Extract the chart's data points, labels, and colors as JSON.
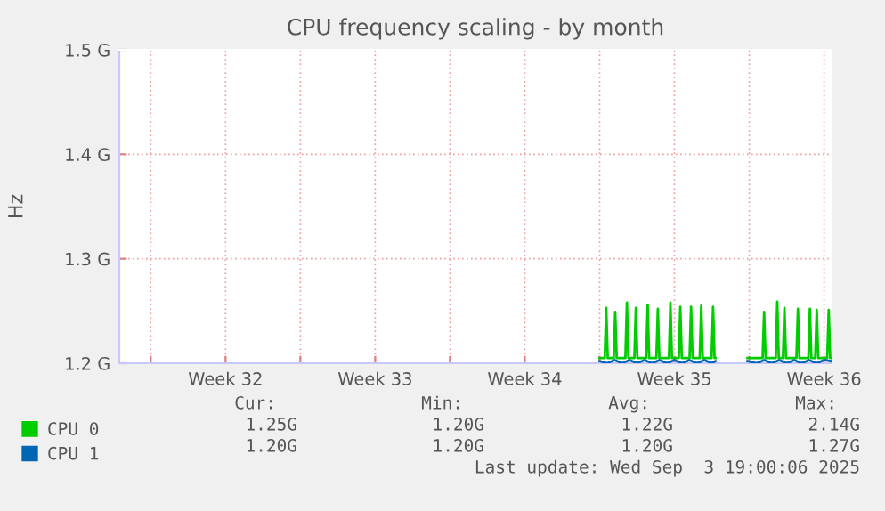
{
  "chart_data": {
    "type": "line",
    "title": "CPU frequency scaling - by month",
    "ylabel": "Hz",
    "xlim": [
      "2025-08-02T12:43",
      "2025-09-04T20:24"
    ],
    "xticks": [
      {
        "value": "2025-08-04",
        "label": null
      },
      {
        "value": "2025-08-07T12:00",
        "label": "Week 32"
      },
      {
        "value": "2025-08-11",
        "label": null
      },
      {
        "value": "2025-08-14T12:00",
        "label": "Week 33"
      },
      {
        "value": "2025-08-18",
        "label": null
      },
      {
        "value": "2025-08-21T12:00",
        "label": "Week 34"
      },
      {
        "value": "2025-08-25",
        "label": null
      },
      {
        "value": "2025-08-28T12:00",
        "label": "Week 35"
      },
      {
        "value": "2025-09-01",
        "label": null
      },
      {
        "value": "2025-09-04T12:00",
        "label": "Week 36"
      }
    ],
    "ylim": [
      1.2,
      1.5
    ],
    "yticks": [
      {
        "value": 1.2,
        "label": "1.2 G"
      },
      {
        "value": 1.3,
        "label": "1.3 G"
      },
      {
        "value": 1.4,
        "label": "1.4 G"
      },
      {
        "value": 1.5,
        "label": "1.5 G"
      }
    ],
    "grid": true,
    "legend": "bottom left",
    "series": [
      {
        "name": "CPU 0",
        "color": "#00cc00",
        "x": [
          "2025-08-25T00:00",
          "2025-08-25T05:43",
          "2025-08-25T07:23",
          "2025-08-25T09:04",
          "2025-08-25T15:47",
          "2025-08-25T17:28",
          "2025-08-25T19:09",
          "2025-08-26T04:54",
          "2025-08-26T06:35",
          "2025-08-26T08:15",
          "2025-08-26T14:59",
          "2025-08-26T16:39",
          "2025-08-26T18:20",
          "2025-08-27T04:15",
          "2025-08-27T05:56",
          "2025-08-27T07:36",
          "2025-08-27T15:40",
          "2025-08-27T17:21",
          "2025-08-27T19:02",
          "2025-08-28T05:47",
          "2025-08-28T07:28",
          "2025-08-28T09:09",
          "2025-08-28T16:52",
          "2025-08-28T18:33",
          "2025-08-28T20:14",
          "2025-08-29T04:58",
          "2025-08-29T06:39",
          "2025-08-29T08:20",
          "2025-08-29T16:23",
          "2025-08-29T18:04",
          "2025-08-29T19:45",
          "2025-08-30T05:40",
          "2025-08-30T07:21",
          "2025-08-30T09:01",
          "2025-08-30T10:02",
          "2025-08-31T03:50",
          "2025-08-31T21:59",
          "2025-09-01T14:57",
          "2025-09-01T16:38",
          "2025-09-01T18:19",
          "2025-09-02T05:44",
          "2025-09-02T07:25",
          "2025-09-02T09:06",
          "2025-09-02T13:48",
          "2025-09-02T15:29",
          "2025-09-02T17:10",
          "2025-09-03T04:55",
          "2025-09-03T06:36",
          "2025-09-03T08:17",
          "2025-09-03T18:22",
          "2025-09-03T20:02",
          "2025-09-03T21:43",
          "2025-09-04T02:04",
          "2025-09-04T03:44",
          "2025-09-04T05:25",
          "2025-09-04T15:30",
          "2025-09-04T17:11",
          "2025-09-04T18:52",
          "2025-09-04T19:52"
        ],
        "values": [
          1.205,
          1.205,
          1.253,
          1.205,
          1.205,
          1.249,
          1.205,
          1.205,
          1.258,
          1.205,
          1.205,
          1.253,
          1.205,
          1.205,
          1.256,
          1.205,
          1.205,
          1.252,
          1.205,
          1.205,
          1.258,
          1.205,
          1.205,
          1.254,
          1.205,
          1.205,
          1.254,
          1.205,
          1.205,
          1.255,
          1.205,
          1.205,
          1.254,
          1.205,
          1.205,
          null,
          1.205,
          1.205,
          1.249,
          1.205,
          1.205,
          1.259,
          1.205,
          1.205,
          1.253,
          1.205,
          1.205,
          1.252,
          1.205,
          1.205,
          1.252,
          1.205,
          1.205,
          1.251,
          1.205,
          1.205,
          1.251,
          1.205,
          1.205
        ]
      },
      {
        "name": "CPU 1",
        "color": "#0066b3",
        "x": [
          "2025-08-25T00:00",
          "2025-08-25T08:24",
          "2025-08-25T16:48",
          "2025-08-26T01:12",
          "2025-08-26T09:36",
          "2025-08-26T18:00",
          "2025-08-27T02:24",
          "2025-08-27T10:48",
          "2025-08-27T19:12",
          "2025-08-28T03:36",
          "2025-08-28T12:00",
          "2025-08-28T20:24",
          "2025-08-29T04:48",
          "2025-08-29T13:12",
          "2025-08-29T21:36",
          "2025-08-30T06:00",
          "2025-08-30T10:02",
          "2025-08-31T03:50",
          "2025-08-31T21:59",
          "2025-09-01T08:24",
          "2025-09-01T16:48",
          "2025-09-02T01:12",
          "2025-09-02T09:36",
          "2025-09-02T18:00",
          "2025-09-03T02:24",
          "2025-09-03T10:48",
          "2025-09-03T19:12",
          "2025-09-04T03:36",
          "2025-09-04T12:00",
          "2025-09-04T19:52"
        ],
        "values": [
          1.202,
          1.2,
          1.203,
          1.2,
          1.203,
          1.2,
          1.203,
          1.2,
          1.203,
          1.2,
          1.203,
          1.2,
          1.203,
          1.2,
          1.203,
          1.2,
          1.202,
          null,
          1.202,
          1.2,
          1.203,
          1.2,
          1.203,
          1.2,
          1.203,
          1.2,
          1.203,
          1.2,
          1.203,
          1.202
        ]
      }
    ],
    "annotations": [
      "Cur:",
      "Min:",
      "Avg:",
      "Max:",
      "1.25G",
      "1.20G",
      "1.22G",
      "2.14G",
      "1.20G",
      "1.20G",
      "1.20G",
      "1.27G",
      "Last update: Wed Sep  3 19:00:06 2025"
    ]
  }
}
